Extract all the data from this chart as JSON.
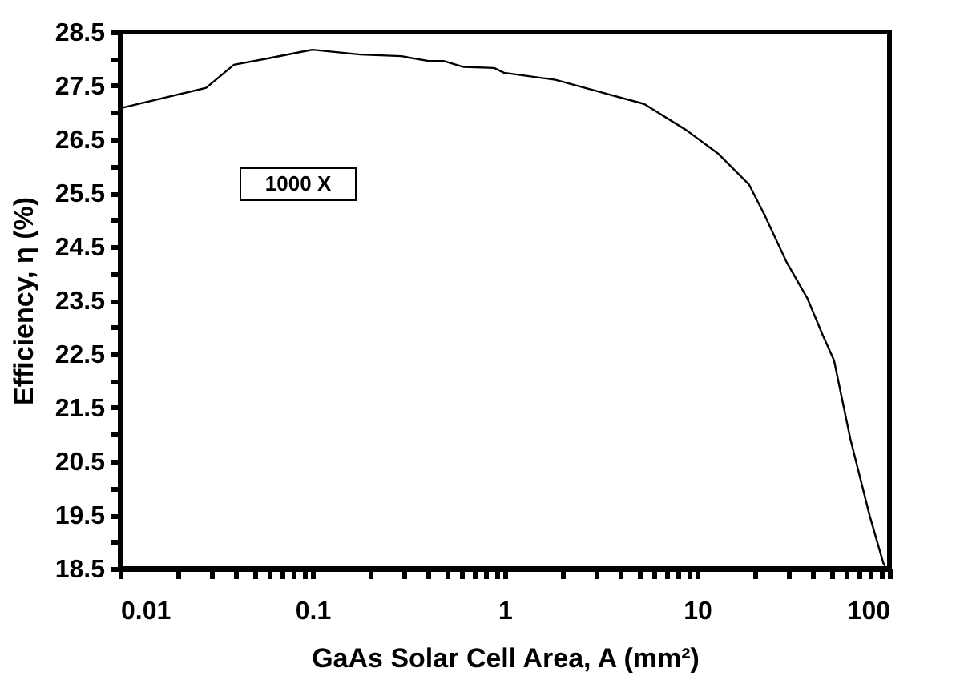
{
  "chart_data": {
    "type": "line",
    "xlabel": "GaAs Solar Cell Area, A (mm²)",
    "ylabel": "Efficiency, η (%)",
    "log": "x",
    "grid": false,
    "legend": false,
    "marker": "none",
    "line_style": "solid",
    "x": [
      0.01,
      0.028,
      0.039,
      0.057,
      0.093,
      0.1,
      0.177,
      0.29,
      0.4,
      0.48,
      0.61,
      0.88,
      0.99,
      1.83,
      3.0,
      5.3,
      8.8,
      12.8,
      18.6,
      22.5,
      29.2,
      37.4,
      45,
      51.5,
      62.5,
      79,
      93,
      95
    ],
    "series": [
      {
        "color": "#000000",
        "values": [
          27.08,
          27.46,
          27.89,
          28.0,
          28.15,
          28.17,
          28.08,
          28.05,
          27.96,
          27.96,
          27.85,
          27.83,
          27.74,
          27.61,
          27.4,
          27.16,
          26.67,
          26.24,
          25.66,
          25.08,
          24.21,
          23.54,
          22.85,
          22.38,
          20.93,
          19.48,
          18.6,
          18.55
        ]
      }
    ],
    "xlim": [
      0.01,
      100
    ],
    "xticks": [
      0.01,
      {
        "value": 0.02,
        "label": null
      },
      {
        "value": 0.03,
        "label": null
      },
      {
        "value": 0.04,
        "label": null
      },
      {
        "value": 0.05,
        "label": null
      },
      {
        "value": 0.06,
        "label": null
      },
      {
        "value": 0.07,
        "label": null
      },
      {
        "value": 0.08,
        "label": null
      },
      {
        "value": 0.09,
        "label": null
      },
      0.1,
      {
        "value": 0.2,
        "label": null
      },
      {
        "value": 0.3,
        "label": null
      },
      {
        "value": 0.4,
        "label": null
      },
      {
        "value": 0.5,
        "label": null
      },
      {
        "value": 0.6,
        "label": null
      },
      {
        "value": 0.7,
        "label": null
      },
      {
        "value": 0.8,
        "label": null
      },
      {
        "value": 0.9,
        "label": null
      },
      1,
      {
        "value": 2,
        "label": null
      },
      {
        "value": 3,
        "label": null
      },
      {
        "value": 4,
        "label": null
      },
      {
        "value": 5,
        "label": null
      },
      {
        "value": 6,
        "label": null
      },
      {
        "value": 7,
        "label": null
      },
      {
        "value": 8,
        "label": null
      },
      {
        "value": 9,
        "label": null
      },
      10,
      {
        "value": 20,
        "label": null
      },
      {
        "value": 30,
        "label": null
      },
      {
        "value": 40,
        "label": null
      },
      {
        "value": 50,
        "label": null
      },
      {
        "value": 60,
        "label": null
      },
      {
        "value": 70,
        "label": null
      },
      {
        "value": 80,
        "label": null
      },
      {
        "value": 90,
        "label": null
      },
      100
    ],
    "ylim": [
      18.5,
      28.5
    ],
    "yticks": [
      18.5,
      {
        "value": 19,
        "label": null
      },
      19.5,
      {
        "value": 20,
        "label": null
      },
      20.5,
      {
        "value": 21,
        "label": null
      },
      21.5,
      {
        "value": 22,
        "label": null
      },
      22.5,
      {
        "value": 23,
        "label": null
      },
      23.5,
      {
        "value": 24,
        "label": null
      },
      24.5,
      {
        "value": 25,
        "label": null
      },
      25.5,
      {
        "value": 26,
        "label": null
      },
      26.5,
      {
        "value": 27,
        "label": null
      },
      27.5,
      {
        "value": 28,
        "label": null
      },
      28.5
    ],
    "annotations": [
      "1000 X"
    ]
  }
}
